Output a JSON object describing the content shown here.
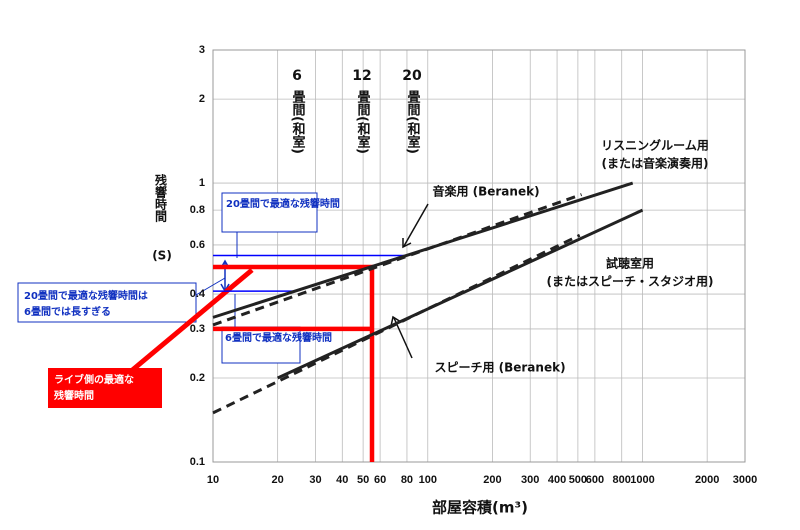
{
  "chart_data": {
    "type": "line",
    "x_label": "部屋容積(m³)",
    "y_label": "残響時間",
    "y_unit": "(S)",
    "log_x": true,
    "log_y": true,
    "grid": true,
    "xlim": [
      10,
      3000
    ],
    "ylim": [
      0.1,
      3
    ],
    "xticks": [
      10,
      20,
      30,
      40,
      50,
      60,
      80,
      100,
      200,
      300,
      400,
      500,
      600,
      800,
      1000,
      2000,
      3000
    ],
    "yticks": [
      0.1,
      0.2,
      0.3,
      0.4,
      0.6,
      0.8,
      1,
      2,
      3
    ],
    "series": [
      {
        "name": "リスニングルーム用",
        "subname": "(または音楽演奏用)",
        "color": "#222222",
        "dash": false,
        "x": [
          10,
          900
        ],
        "values": [
          0.33,
          1.0
        ]
      },
      {
        "name": "音楽用 (Beranek)",
        "color": "#222222",
        "dash": true,
        "x": [
          10,
          520
        ],
        "values": [
          0.31,
          0.91
        ]
      },
      {
        "name": "試聴室用",
        "subname": "(またはスピーチ・スタジオ用)",
        "color": "#222222",
        "dash": false,
        "x": [
          20,
          1000
        ],
        "values": [
          0.2,
          0.8
        ]
      },
      {
        "name": "スピーチ用 (Beranek)",
        "color": "#222222",
        "dash": true,
        "x": [
          10,
          510
        ],
        "values": [
          0.15,
          0.65
        ]
      }
    ],
    "reference_lines": [
      {
        "color": "#ff0000",
        "x": [
          10,
          55,
          55
        ],
        "values": [
          0.5,
          0.5,
          0.1
        ]
      },
      {
        "color": "#ff0000",
        "x": [
          10,
          55
        ],
        "values": [
          0.3,
          0.3
        ]
      },
      {
        "color": "#0000ff",
        "x": [
          10,
          80
        ],
        "values": [
          0.55,
          0.55
        ]
      },
      {
        "color": "#0000ff",
        "x": [
          10,
          24
        ],
        "values": [
          0.41,
          0.41
        ]
      }
    ],
    "room_labels": [
      {
        "number": "6",
        "text": "畳間(和室)"
      },
      {
        "number": "12",
        "text": "畳間(和室)"
      },
      {
        "number": "20",
        "text": "畳間(和室)"
      }
    ],
    "callouts": {
      "best_20": "20畳間で最適な残響時間",
      "too_long": [
        "20畳間で最適な残響時間は",
        "6畳間では長すぎる"
      ],
      "best_6": "6畳間で最適な残響時間",
      "live": [
        "ライブ側の最適な",
        "残響時間"
      ]
    }
  }
}
